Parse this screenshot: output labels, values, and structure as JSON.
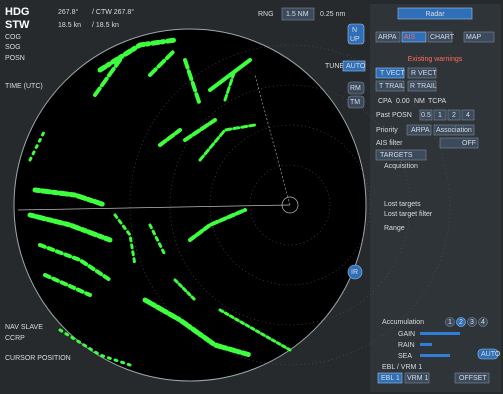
{
  "header": {
    "hdg_label": "HDG",
    "hdg": "267.8°",
    "ctw": "/ CTW 267.8°",
    "stw_label": "STW",
    "stw": "18.5 kn",
    "stw2": "/ 18.5 kn",
    "cog_label": "COG",
    "sog_label": "SOG",
    "posn_label": "POSN",
    "time_label": "TIME (UTC)"
  },
  "range": {
    "label": "RNG",
    "value": "1.5 NM",
    "rings": "0.25 nm"
  },
  "side": {
    "north_up": "N",
    "up": "UP",
    "rm": "RM",
    "tm": "TM",
    "tune": "TUNE",
    "auto": "AUTO",
    "ir": "IR"
  },
  "panel": {
    "radar": "Radar",
    "tabs": [
      "ARPA",
      "AIS",
      "CHART",
      "MAP"
    ],
    "warnings": "Existing warnings",
    "t_vect": "T VECT",
    "r_vect": "R VECT",
    "t_trail": "T TRAIL",
    "r_trail": "R TRAIL",
    "cpa": "CPA",
    "cpa_value": "0.00",
    "cpa_unit": "NM",
    "tcpa": "TCPA",
    "past_posn": "Past POSN",
    "past_steps": [
      "0.5",
      "1",
      "2",
      "4"
    ],
    "priority": "Priority",
    "priority_arpa": "ARPA",
    "association": "Association",
    "ais_filter": "AIS filter",
    "ais_filter_value": "OFF",
    "targets": "TARGETS",
    "acquisition": "Acquisition",
    "lost_targets": "Lost targets",
    "lost_target_filter": "Lost target filter",
    "range": "Range",
    "accumulation": "Accumulation",
    "acc_steps": [
      "1",
      "2",
      "3",
      "4"
    ],
    "gain": "GAIN",
    "rain": "RAIN",
    "sea": "SEA",
    "auto": "AUTO",
    "ebl_vrm": "EBL / VRM 1",
    "ebl1": "EBL 1",
    "vrm1": "VRM 1",
    "offset": "OFFSET"
  },
  "footer": {
    "nav": "NAV SLAVE",
    "ccrp": "CCRP",
    "cursor": "CURSOR POSITION"
  }
}
